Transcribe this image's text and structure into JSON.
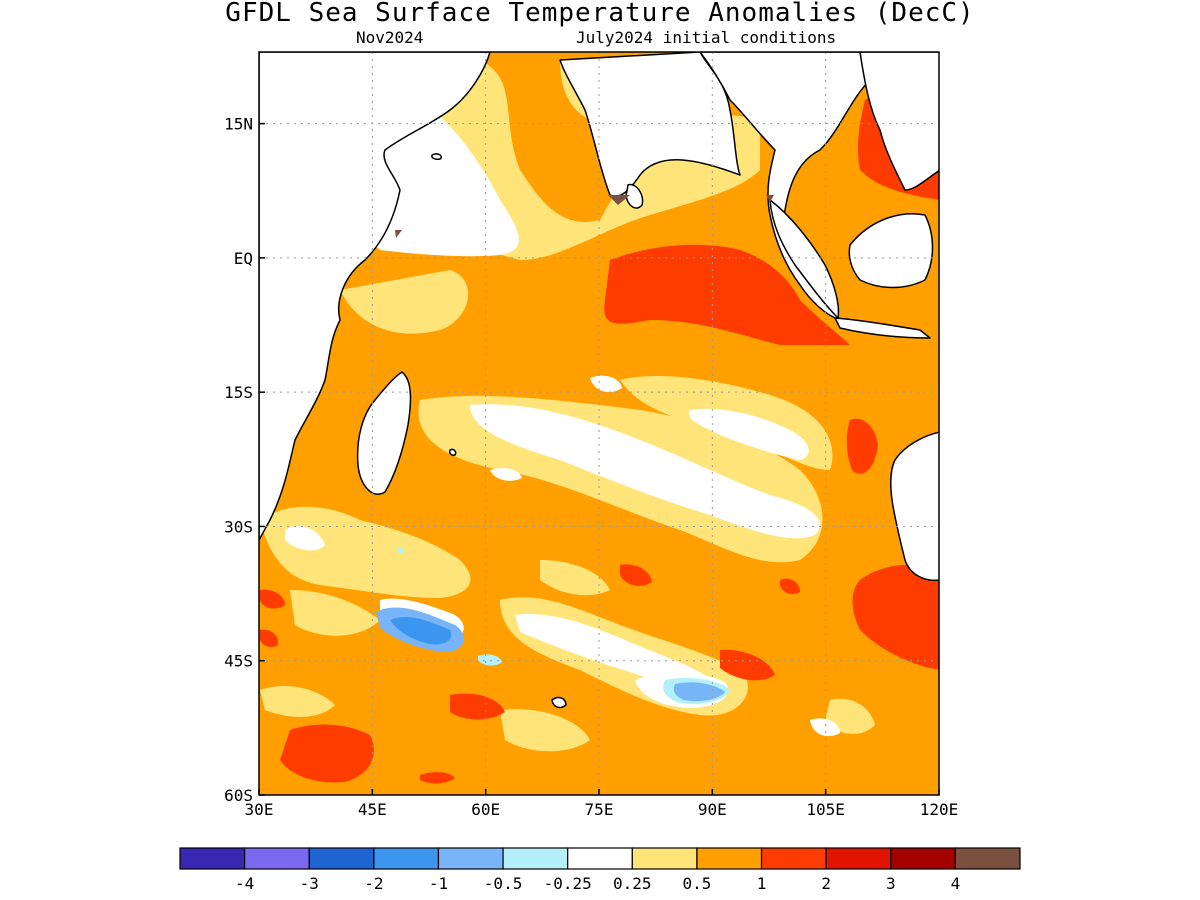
{
  "title": "GFDL Sea Surface Temperature Anomalies (DecC)",
  "subtitle_left": "Nov2024",
  "subtitle_right": "July2024 initial conditions",
  "map": {
    "lon_range": [
      30,
      120
    ],
    "lat_range": [
      -60,
      23
    ],
    "lon_ticks": [
      {
        "value": 30,
        "label": "30E"
      },
      {
        "value": 45,
        "label": "45E"
      },
      {
        "value": 60,
        "label": "60E"
      },
      {
        "value": 75,
        "label": "75E"
      },
      {
        "value": 90,
        "label": "90E"
      },
      {
        "value": 105,
        "label": "105E"
      },
      {
        "value": 120,
        "label": "120E"
      }
    ],
    "lat_ticks": [
      {
        "value": 15,
        "label": "15N"
      },
      {
        "value": 0,
        "label": "EQ"
      },
      {
        "value": -15,
        "label": "15S"
      },
      {
        "value": -30,
        "label": "30S"
      },
      {
        "value": -45,
        "label": "45S"
      },
      {
        "value": -60,
        "label": "60S"
      }
    ],
    "grid": true,
    "grid_style": "dotted"
  },
  "colorbar": {
    "colors": [
      "#3a27b4",
      "#7b68ee",
      "#1e64d2",
      "#3c96f0",
      "#78b4f8",
      "#b4f0fa",
      "#ffffff",
      "#ffe47a",
      "#ffa000",
      "#ff3c00",
      "#e11400",
      "#a50000",
      "#7a5040"
    ],
    "labels": [
      "-4",
      "-3",
      "-2",
      "-1",
      "-0.5",
      "-0.25",
      "0.25",
      "0.5",
      "1",
      "2",
      "3",
      "4"
    ]
  }
}
